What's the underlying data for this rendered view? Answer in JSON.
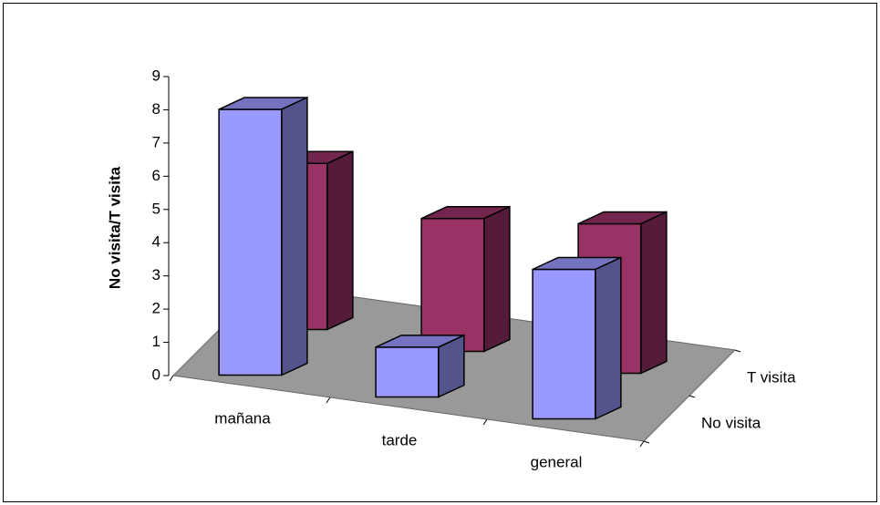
{
  "chart_data": {
    "type": "bar3d",
    "y_label": "No visita/T visita",
    "categories": [
      "mañana",
      "tarde",
      "general"
    ],
    "series": [
      {
        "name": "No visita",
        "color": "#9999ff",
        "values": [
          8,
          1.5,
          4.5
        ]
      },
      {
        "name": "T visita",
        "color": "#993366",
        "values": [
          5,
          4,
          4.5
        ]
      }
    ],
    "ylim": [
      0,
      9
    ],
    "yticks": [
      0,
      1,
      2,
      3,
      4,
      5,
      6,
      7,
      8,
      9
    ]
  }
}
